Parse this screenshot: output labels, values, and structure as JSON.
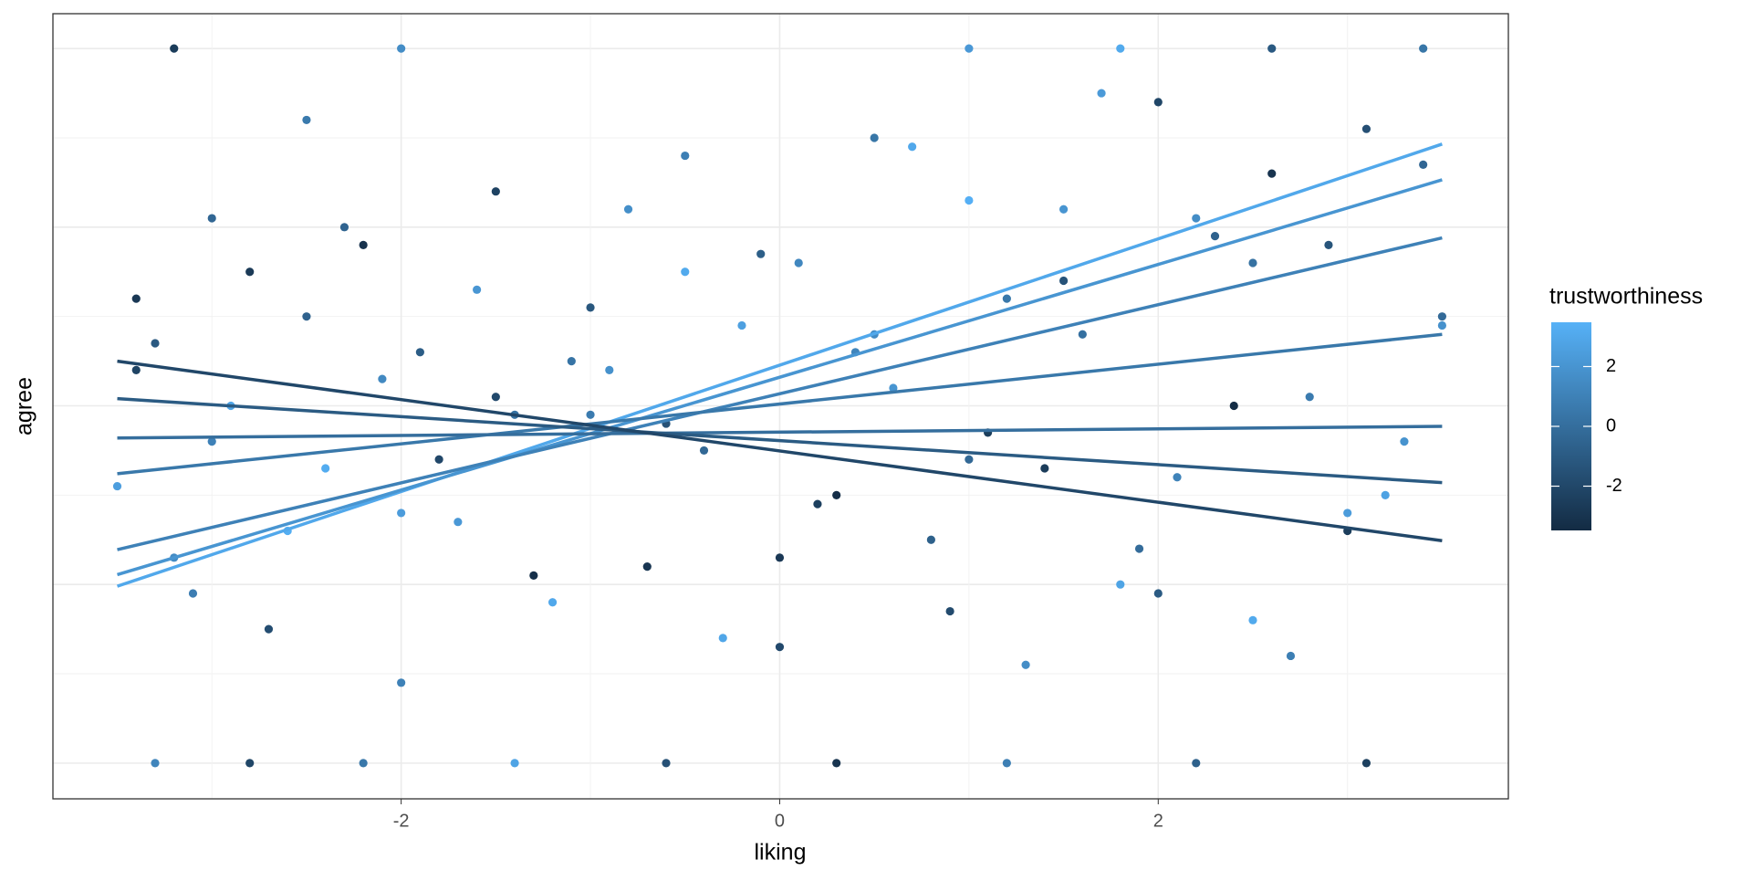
{
  "chart_data": {
    "type": "scatter",
    "x_label": "liking",
    "y_label": "agree",
    "xlim": [
      -3.84,
      3.85
    ],
    "ylim": [
      -0.4,
      8.39
    ],
    "xticks": [
      -2,
      0,
      2
    ],
    "xminor": [
      -3,
      -1,
      1,
      3
    ],
    "ygrid": [
      0,
      1,
      2,
      3,
      4,
      5,
      6,
      7,
      8
    ],
    "grid": true,
    "x": [
      -3.4,
      -3.2,
      -3.0,
      -2.9,
      -2.7,
      -2.5,
      -2.4,
      -2.2,
      -2.0,
      -1.9,
      -1.7,
      -1.5,
      -1.4,
      -1.2,
      -1.0,
      -0.9,
      -0.7,
      -0.5,
      -0.4,
      -0.2,
      0.0,
      0.1,
      0.3,
      0.5,
      0.6,
      0.8,
      1.0,
      1.1,
      1.3,
      1.5,
      1.6,
      1.8,
      2.0,
      2.1,
      2.3,
      2.5,
      2.6,
      2.8,
      3.0,
      3.1,
      3.3,
      3.5,
      -3.5,
      -3.3,
      -3.1,
      -2.8,
      -2.6,
      -2.3,
      -2.1,
      -1.8,
      -1.6,
      -1.3,
      -1.1,
      -0.8,
      -0.6,
      -0.3,
      -0.1,
      0.2,
      0.4,
      0.7,
      0.9,
      1.2,
      1.4,
      1.7,
      1.9,
      2.2,
      2.4,
      2.7,
      2.9,
      3.2,
      3.4,
      -3.4,
      -3.0,
      -2.5,
      -2.0,
      -1.5,
      -1.0,
      -0.5,
      0.0,
      0.5,
      1.0,
      1.5,
      2.0,
      2.5,
      3.0,
      3.5,
      -3.3,
      -2.8,
      -2.2,
      -1.4,
      -0.6,
      0.3,
      1.2,
      2.2,
      3.1,
      1.0,
      1.8,
      2.6,
      3.4,
      -3.2,
      -2.0
    ],
    "y": [
      5.2,
      2.3,
      6.1,
      4.0,
      1.5,
      7.2,
      3.3,
      5.8,
      0.9,
      4.6,
      2.7,
      6.4,
      3.9,
      1.8,
      5.1,
      4.4,
      2.2,
      6.8,
      3.5,
      4.9,
      1.3,
      5.6,
      3.0,
      7.0,
      4.2,
      2.5,
      6.3,
      3.7,
      1.1,
      5.4,
      4.8,
      2.0,
      7.4,
      3.2,
      5.9,
      1.6,
      6.6,
      4.1,
      2.8,
      7.1,
      3.6,
      5.0,
      3.1,
      4.7,
      1.9,
      5.5,
      2.6,
      6.0,
      4.3,
      3.4,
      5.3,
      2.1,
      4.5,
      6.2,
      3.8,
      1.4,
      5.7,
      2.9,
      4.6,
      6.9,
      1.7,
      5.2,
      3.3,
      7.5,
      2.4,
      6.1,
      4.0,
      1.2,
      5.8,
      3.0,
      6.7,
      4.4,
      3.6,
      5.0,
      2.8,
      4.1,
      3.9,
      5.5,
      2.3,
      4.8,
      3.4,
      6.2,
      1.9,
      5.6,
      2.6,
      4.9,
      0,
      0,
      0,
      0,
      0,
      0,
      0,
      0,
      0,
      8,
      8,
      8,
      8,
      8,
      8
    ],
    "color_values": [
      -2.8,
      1.5,
      -0.4,
      2.9,
      -1.7,
      0.6,
      3.2,
      -3.1,
      1.0,
      -0.9,
      2.2,
      -2.3,
      0.2,
      3.0,
      -1.2,
      1.8,
      -2.9,
      0.9,
      -0.3,
      2.6,
      -1.9,
      1.3,
      -3.3,
      0.4,
      2.0,
      -0.7,
      3.4,
      -2.5,
      1.6,
      -1.4,
      0.1,
      2.8,
      -2.1,
      1.1,
      -0.6,
      3.1,
      -3.0,
      0.7,
      2.4,
      -1.6,
      1.9,
      -0.2,
      2.5,
      -1.1,
      0.8,
      -2.7,
      3.3,
      -0.5,
      1.4,
      -2.0,
      2.1,
      -3.2,
      0.3,
      1.7,
      -1.5,
      2.9,
      -0.8,
      -2.4,
      1.2,
      3.0,
      -1.8,
      0.5,
      -2.6,
      2.3,
      -0.1,
      1.6,
      -3.4,
      0.9,
      -1.3,
      2.7,
      -0.4,
      -2.2,
      1.0,
      -0.6,
      2.4,
      -1.9,
      0.7,
      3.1,
      -2.8,
      1.5,
      -0.3,
      2.0,
      -1.0,
      0.2,
      -2.5,
      1.8,
      1.2,
      -2.1,
      0.5,
      2.8,
      -1.5,
      -3.0,
      0.9,
      -0.7,
      -2.4,
      2.2,
      3.1,
      -1.1,
      0.4,
      -2.6,
      1.6
    ],
    "lines": [
      {
        "color_value": 3,
        "x": [
          -3.5,
          3.5
        ],
        "y": [
          1.98,
          6.93
        ]
      },
      {
        "color_value": 2,
        "x": [
          -3.5,
          3.5
        ],
        "y": [
          2.11,
          6.53
        ]
      },
      {
        "color_value": 1,
        "x": [
          -3.5,
          3.5
        ],
        "y": [
          2.39,
          5.88
        ]
      },
      {
        "color_value": 0.5,
        "x": [
          -3.5,
          3.5
        ],
        "y": [
          3.24,
          4.8
        ]
      },
      {
        "color_value": 0,
        "x": [
          -3.5,
          3.5
        ],
        "y": [
          3.64,
          3.77
        ]
      },
      {
        "color_value": -1,
        "x": [
          -3.5,
          3.5
        ],
        "y": [
          4.08,
          3.14
        ]
      },
      {
        "color_value": -2,
        "x": [
          -3.5,
          3.5
        ],
        "y": [
          4.5,
          2.49
        ]
      }
    ],
    "color_low": "#132B43",
    "color_high": "#56B1F7",
    "legend": {
      "title": "trustworthiness",
      "limits": [
        -3.48,
        3.48
      ],
      "ticks": [
        -2,
        0,
        2
      ]
    }
  }
}
